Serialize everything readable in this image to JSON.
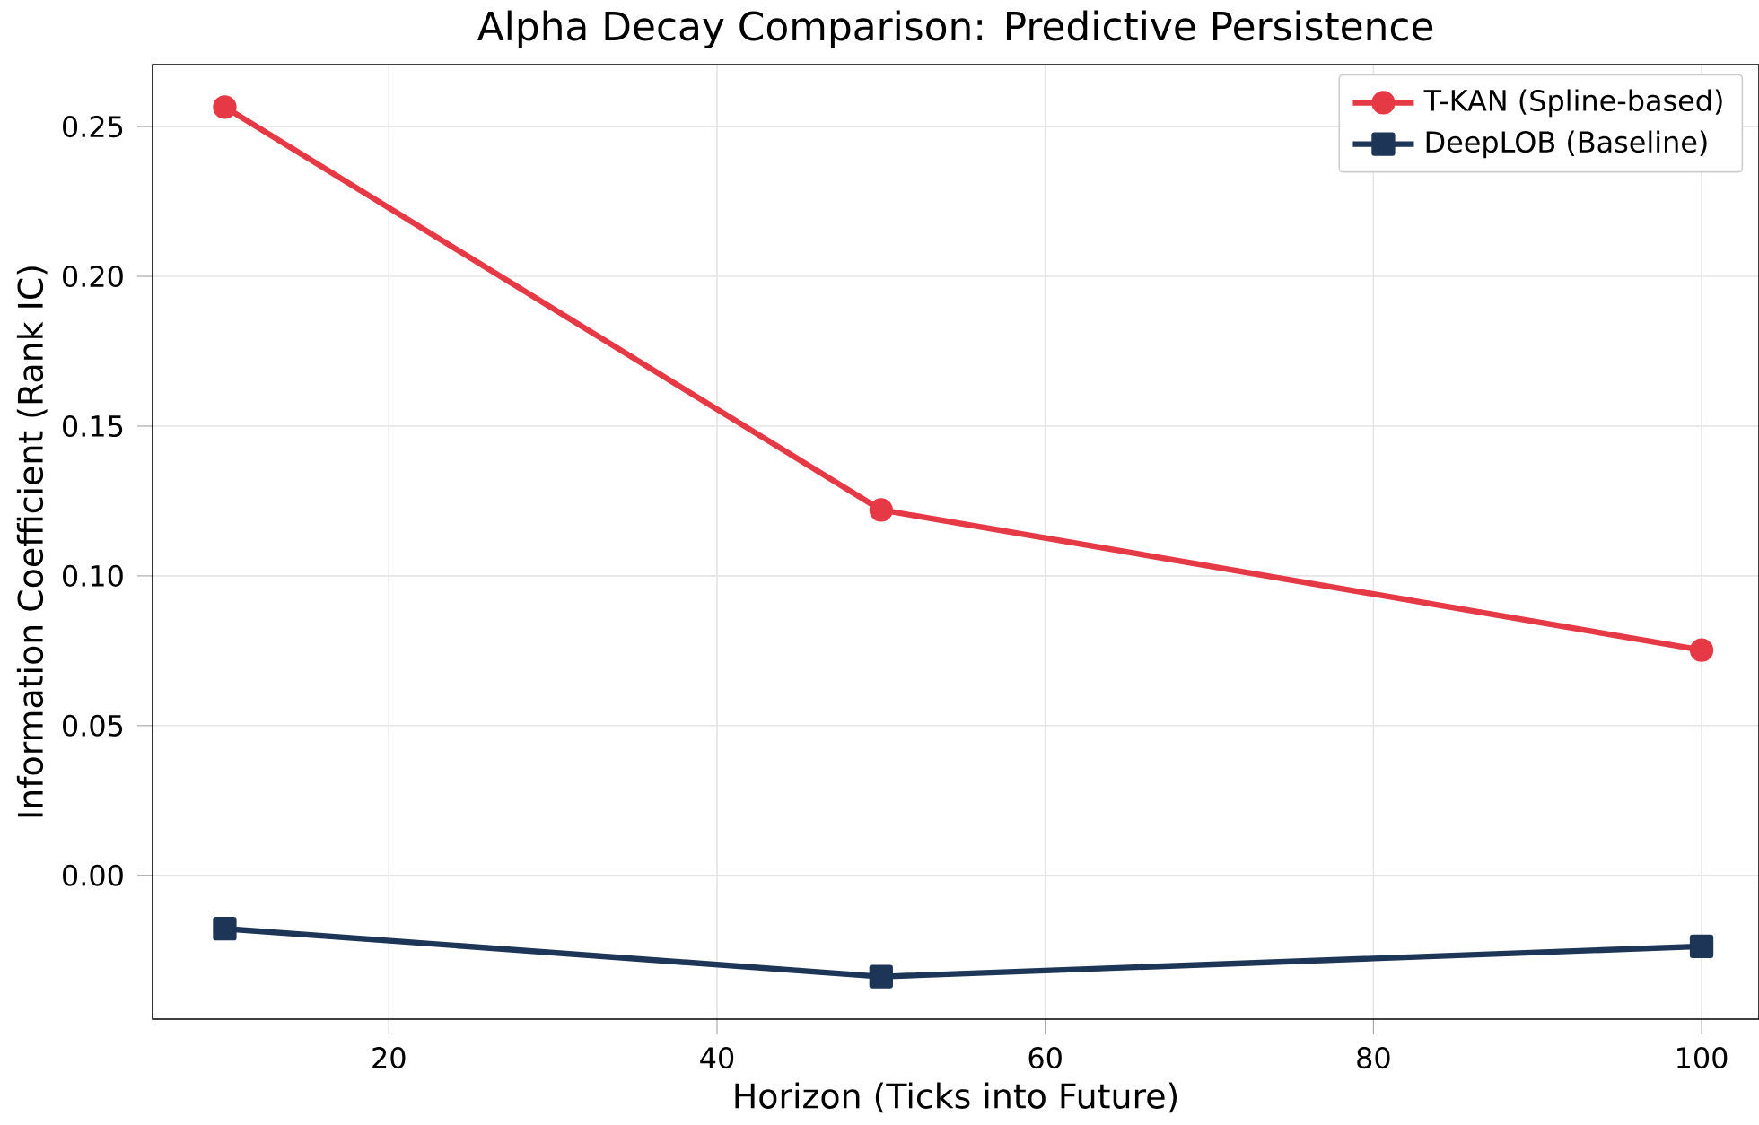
{
  "chart_data": {
    "type": "line",
    "title": "Alpha Decay Comparison: Predictive Persistence",
    "xlabel": "Horizon (Ticks into Future)",
    "ylabel": "Information Coefficient (Rank IC)",
    "x": [
      10,
      50,
      100
    ],
    "series": [
      {
        "name": "T-KAN (Spline-based)",
        "color": "#e63946",
        "marker": "circle",
        "values": [
          0.2565,
          0.122,
          0.0752
        ]
      },
      {
        "name": "DeepLOB (Baseline)",
        "color": "#1d3557",
        "marker": "square",
        "values": [
          -0.0178,
          -0.0338,
          -0.0237
        ]
      }
    ],
    "xlim": [
      5.6,
      103.5
    ],
    "ylim": [
      -0.048,
      0.2707
    ],
    "xticks": [
      20,
      40,
      60,
      80,
      100
    ],
    "yticks": [
      {
        "value": 0.0,
        "label": "0.00"
      },
      {
        "value": 0.05,
        "label": "0.05"
      },
      {
        "value": 0.1,
        "label": "0.10"
      },
      {
        "value": 0.15,
        "label": "0.15"
      },
      {
        "value": 0.2,
        "label": "0.20"
      },
      {
        "value": 0.25,
        "label": "0.25"
      }
    ],
    "grid": true,
    "legend": "top right",
    "line_style": "solid"
  }
}
